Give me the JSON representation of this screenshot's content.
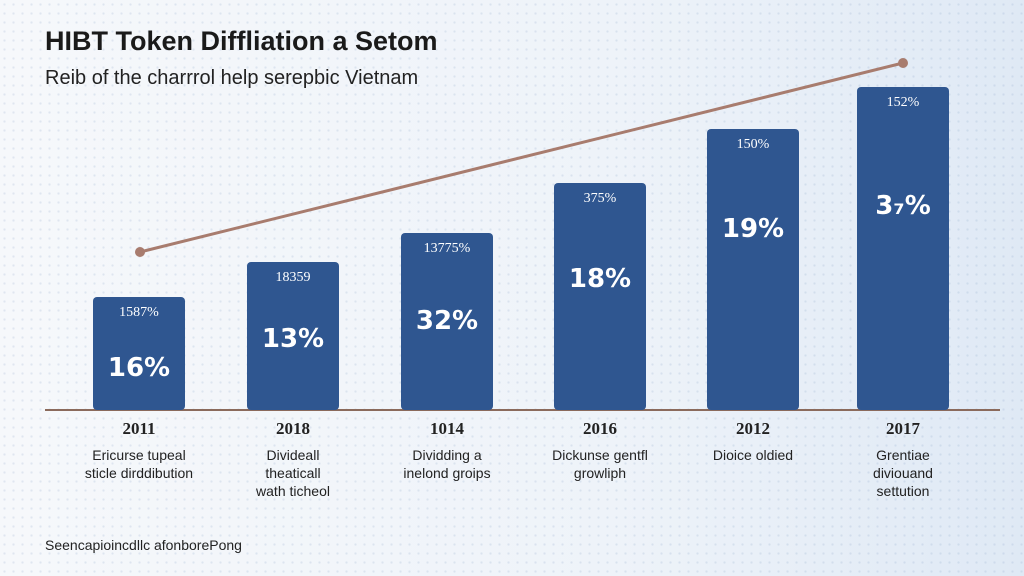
{
  "title": "HIBT Token Diffliation a Setom",
  "subtitle": "Reib of the charrrol help serepbic Vietnam",
  "bars": [
    {
      "year": "2011",
      "top_label": "1587%",
      "main_label": "16%",
      "caption": [
        "Ericurse tupeal",
        "sticle dirddibution"
      ]
    },
    {
      "year": "2018",
      "top_label": "18359",
      "main_label": "13%",
      "caption": [
        "Divideall",
        "theaticall",
        "wath ticheol"
      ]
    },
    {
      "year": "1014",
      "top_label": "13775%",
      "main_label": "32%",
      "caption": [
        "Dividding a",
        "inelond groips"
      ]
    },
    {
      "year": "2016",
      "top_label": "375%",
      "main_label": "18%",
      "caption": [
        "Dickunse gentfl",
        "growliph"
      ]
    },
    {
      "year": "2012",
      "top_label": "150%",
      "main_label": "19%",
      "caption": [
        "Dioice oldied"
      ]
    },
    {
      "year": "2017",
      "top_label": "152%",
      "main_label": "3₇%",
      "caption": [
        "Grentiae",
        "diviouand",
        "settution"
      ]
    }
  ],
  "footer": "Seencapioincdllc afonborePong"
}
